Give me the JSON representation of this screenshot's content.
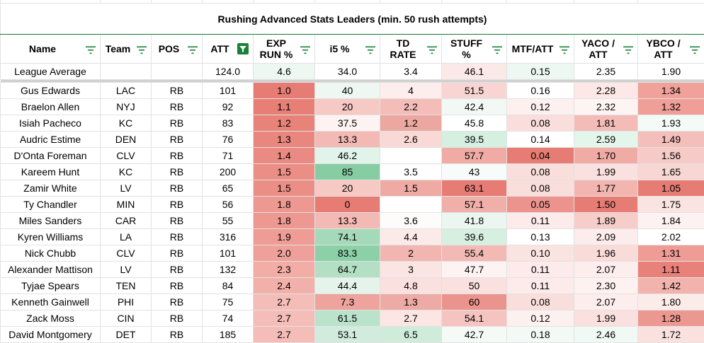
{
  "title": "Rushing Advanced Stats Leaders (min. 50 rush attempts)",
  "headers": [
    {
      "label": "Name",
      "filter": "filter-icon"
    },
    {
      "label": "Team",
      "filter": "filter-icon"
    },
    {
      "label": "POS",
      "filter": "filter-icon"
    },
    {
      "label": "ATT",
      "filter": "filter-active-icon"
    },
    {
      "label": "EXP\nRUN %",
      "filter": "filter-icon"
    },
    {
      "label": "i5 %",
      "filter": "filter-icon"
    },
    {
      "label": "TD\nRATE",
      "filter": "filter-icon"
    },
    {
      "label": "STUFF\n%",
      "filter": "filter-icon"
    },
    {
      "label": "MTF/ATT",
      "filter": "filter-icon"
    },
    {
      "label": "YACO /\nATT",
      "filter": "filter-icon"
    },
    {
      "label": "YBCO /\nATT",
      "filter": "filter-icon"
    }
  ],
  "average": [
    "League Average",
    "",
    "",
    "124.0",
    "4.6",
    "34.0",
    "3.4",
    "46.1",
    "0.15",
    "2.35",
    "1.90"
  ],
  "average_colors": [
    "#ffffff",
    "#ffffff",
    "#ffffff",
    "#ffffff",
    "#eef8f2",
    "#ffffff",
    "#ffffff",
    "#fbe9e8",
    "#eef8f2",
    "#ffffff",
    "#ffffff"
  ],
  "rows": [
    {
      "cells": [
        "Gus Edwards",
        "LAC",
        "RB",
        "101",
        "1.0",
        "40",
        "4",
        "51.5",
        "0.16",
        "2.28",
        "1.34"
      ],
      "colors": [
        "#fff",
        "#fff",
        "#fff",
        "#fff",
        "#e67c73",
        "#eef7f1",
        "#fdeeed",
        "#f8d5d2",
        "#ffffff",
        "#fde8e7",
        "#efa19a"
      ]
    },
    {
      "cells": [
        "Braelon Allen",
        "NYJ",
        "RB",
        "92",
        "1.1",
        "20",
        "2.2",
        "42.4",
        "0.12",
        "2.32",
        "1.32"
      ],
      "colors": [
        "#fff",
        "#fff",
        "#fff",
        "#fff",
        "#e77f76",
        "#f6c9c5",
        "#f4bdb8",
        "#f2f9f5",
        "#fdf1f0",
        "#fef4f4",
        "#ef9f98"
      ]
    },
    {
      "cells": [
        "Isiah Pacheco",
        "KC",
        "RB",
        "83",
        "1.2",
        "37.5",
        "1.2",
        "45.8",
        "0.08",
        "1.81",
        "1.93"
      ],
      "colors": [
        "#fff",
        "#fff",
        "#fff",
        "#fff",
        "#e8837a",
        "#fdf3f2",
        "#eda7a1",
        "#ffffff",
        "#f9dedc",
        "#f4bcb7",
        "#f4fbf7"
      ]
    },
    {
      "cells": [
        "Audric Estime",
        "DEN",
        "RB",
        "76",
        "1.3",
        "13.3",
        "2.6",
        "39.5",
        "0.14",
        "2.59",
        "1.49"
      ],
      "colors": [
        "#fff",
        "#fff",
        "#fff",
        "#fff",
        "#e9867e",
        "#f3b9b4",
        "#f9d9d6",
        "#d5efe0",
        "#ffffff",
        "#e4f5eb",
        "#f4bfba"
      ]
    },
    {
      "cells": [
        "D'Onta Foreman",
        "CLV",
        "RB",
        "71",
        "1.4",
        "46.2",
        "",
        "57.7",
        "0.04",
        "1.70",
        "1.56"
      ],
      "colors": [
        "#fff",
        "#fff",
        "#fff",
        "#fff",
        "#ea8a82",
        "#e2f3e9",
        "#ffffff",
        "#f0aba5",
        "#e67c73",
        "#f0aba5",
        "#f6cbc7"
      ]
    },
    {
      "cells": [
        "Kareem Hunt",
        "KC",
        "RB",
        "200",
        "1.5",
        "85",
        "3.5",
        "43",
        "0.08",
        "1.99",
        "1.65"
      ],
      "colors": [
        "#fff",
        "#fff",
        "#fff",
        "#fff",
        "#eb8e86",
        "#87cda4",
        "#fffefe",
        "#f7fbf9",
        "#f9dedc",
        "#fae0de",
        "#f8d6d3"
      ]
    },
    {
      "cells": [
        "Zamir White",
        "LV",
        "RB",
        "65",
        "1.5",
        "20",
        "1.5",
        "63.1",
        "0.08",
        "1.77",
        "1.05"
      ],
      "colors": [
        "#fff",
        "#fff",
        "#fff",
        "#fff",
        "#eb8e86",
        "#f6c9c5",
        "#efaaa4",
        "#e67c73",
        "#f9dedc",
        "#f2b5b0",
        "#e67c73"
      ]
    },
    {
      "cells": [
        "Ty Chandler",
        "MIN",
        "RB",
        "56",
        "1.8",
        "0",
        "",
        "57.1",
        "0.05",
        "1.50",
        "1.75"
      ],
      "colors": [
        "#fff",
        "#fff",
        "#fff",
        "#fff",
        "#ed9891",
        "#e67c73",
        "#ffffff",
        "#f0afa9",
        "#eb938c",
        "#e67c73",
        "#fae4e2"
      ]
    },
    {
      "cells": [
        "Miles Sanders",
        "CAR",
        "RB",
        "55",
        "1.8",
        "13.3",
        "3.6",
        "41.8",
        "0.11",
        "1.89",
        "1.84"
      ],
      "colors": [
        "#fff",
        "#fff",
        "#fff",
        "#fff",
        "#ed9891",
        "#f3b9b4",
        "#fefbfb",
        "#ebf6f0",
        "#fcebea",
        "#f7cdc9",
        "#fdf2f1"
      ]
    },
    {
      "cells": [
        "Kyren Williams",
        "LA",
        "RB",
        "316",
        "1.9",
        "74.1",
        "4.4",
        "39.6",
        "0.13",
        "2.09",
        "2.02"
      ],
      "colors": [
        "#fff",
        "#fff",
        "#fff",
        "#fff",
        "#ee9c95",
        "#a4d9ba",
        "#fceae9",
        "#d6efe1",
        "#ffffff",
        "#fceceb",
        "#ffffff"
      ]
    },
    {
      "cells": [
        "Nick Chubb",
        "CLV",
        "RB",
        "101",
        "2.0",
        "83.3",
        "2",
        "55.4",
        "0.10",
        "1.96",
        "1.31"
      ],
      "colors": [
        "#fff",
        "#fff",
        "#fff",
        "#fff",
        "#efa09a",
        "#8cd0a8",
        "#f2b5b0",
        "#f3bab5",
        "#fae4e2",
        "#f9dbd8",
        "#ee9c95"
      ]
    },
    {
      "cells": [
        "Alexander Mattison",
        "LV",
        "RB",
        "132",
        "2.3",
        "64.7",
        "3",
        "47.7",
        "0.11",
        "2.07",
        "1.11"
      ],
      "colors": [
        "#fff",
        "#fff",
        "#fff",
        "#fff",
        "#f2ada7",
        "#b3dfc5",
        "#fbe5e3",
        "#fdf3f3",
        "#fcebea",
        "#fdeeed",
        "#e88179"
      ]
    },
    {
      "cells": [
        "Tyjae Spears",
        "TEN",
        "RB",
        "84",
        "2.4",
        "44.4",
        "4.8",
        "50",
        "0.11",
        "2.30",
        "1.42"
      ],
      "colors": [
        "#fff",
        "#fff",
        "#fff",
        "#fff",
        "#f2b0aa",
        "#e5f4eb",
        "#fae0de",
        "#fae1df",
        "#fcebea",
        "#fef2f1",
        "#f2b3ad"
      ]
    },
    {
      "cells": [
        "Kenneth Gainwell",
        "PHI",
        "RB",
        "75",
        "2.7",
        "7.3",
        "1.3",
        "60",
        "0.08",
        "2.07",
        "1.80"
      ],
      "colors": [
        "#fff",
        "#fff",
        "#fff",
        "#fff",
        "#f5bdb8",
        "#eea39d",
        "#eeaaa4",
        "#eb948d",
        "#f9dedc",
        "#fdeeed",
        "#fbecea"
      ]
    },
    {
      "cells": [
        "Zack Moss",
        "CIN",
        "RB",
        "74",
        "2.7",
        "61.5",
        "2.7",
        "54.1",
        "0.12",
        "1.99",
        "1.28"
      ],
      "colors": [
        "#fff",
        "#fff",
        "#fff",
        "#fff",
        "#f5bdb8",
        "#bbe3cb",
        "#fbe6e4",
        "#f5c4c0",
        "#fdf1f0",
        "#fae0de",
        "#ec9890"
      ]
    },
    {
      "cells": [
        "David Montgomery",
        "DET",
        "RB",
        "185",
        "2.7",
        "53.1",
        "6.5",
        "42.7",
        "0.18",
        "2.46",
        "1.72"
      ],
      "colors": [
        "#fff",
        "#fff",
        "#fff",
        "#fff",
        "#f5bdb8",
        "#d1ecdc",
        "#cfecdb",
        "#f5faf7",
        "#f3faf6",
        "#f0f9f4",
        "#fae1df"
      ]
    }
  ]
}
